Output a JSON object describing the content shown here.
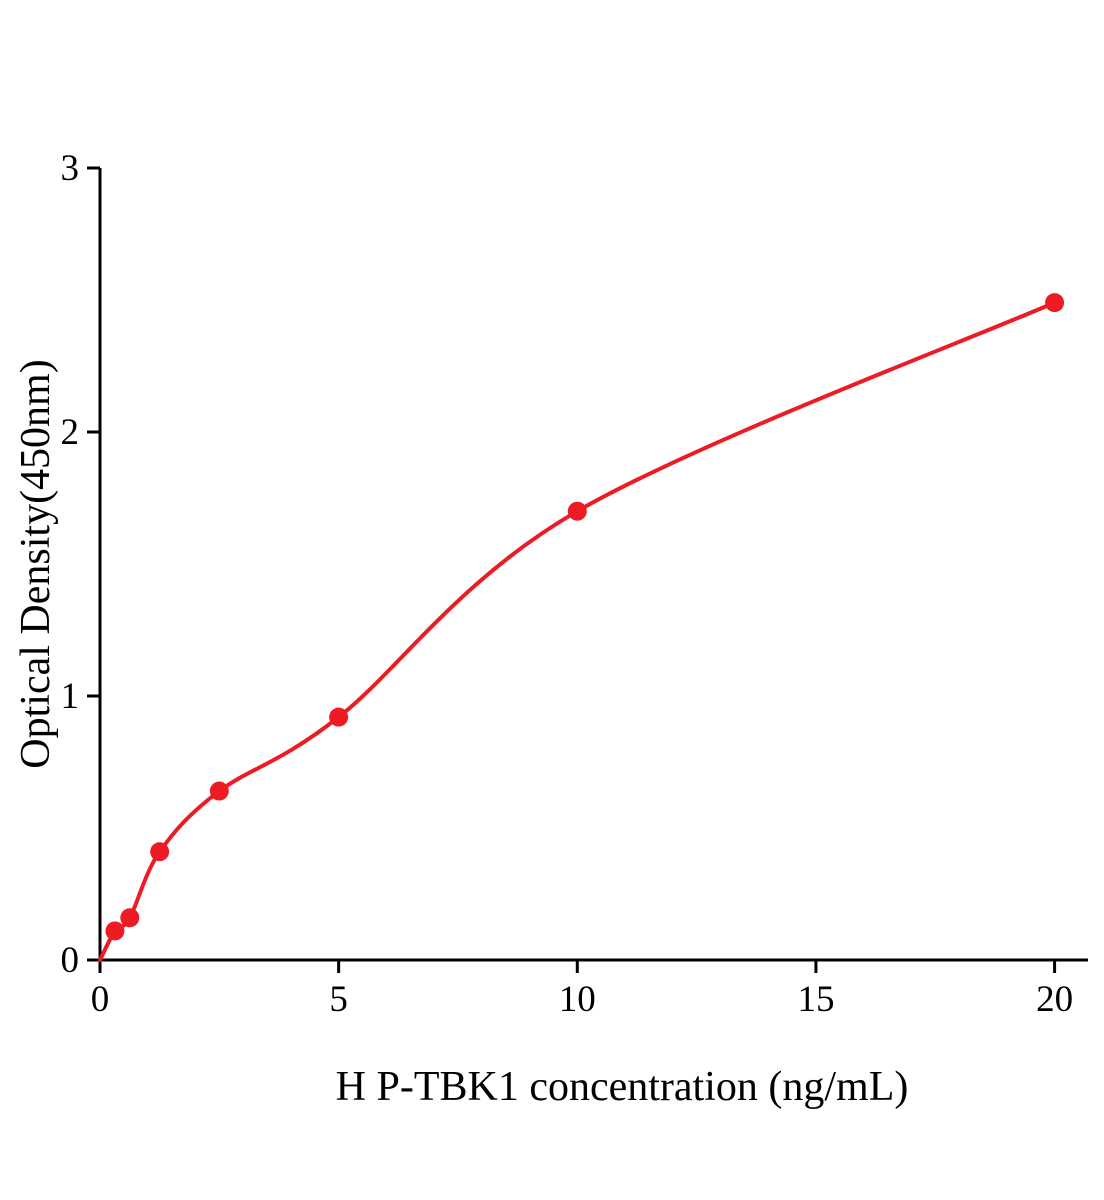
{
  "chart_data": {
    "type": "scatter",
    "title": "",
    "xlabel": "H P-TBK1 concentration (ng/mL)",
    "ylabel": "Optical Density(450nm)",
    "x": [
      0.313,
      0.625,
      1.25,
      2.5,
      5,
      10,
      20
    ],
    "y": [
      0.11,
      0.16,
      0.41,
      0.64,
      0.92,
      1.7,
      2.49
    ],
    "curve_through_origin": true,
    "xlim": [
      0,
      20.7
    ],
    "ylim": [
      0,
      3
    ],
    "xticks": [
      0,
      5,
      10,
      15,
      20
    ],
    "yticks": [
      0,
      1,
      2,
      3
    ],
    "grid": false,
    "legend_position": "none",
    "point_color": "#ed1c24",
    "line_color": "#ed1c24",
    "axis_color": "#000000",
    "background": "#ffffff"
  }
}
